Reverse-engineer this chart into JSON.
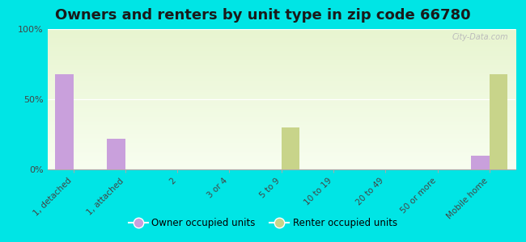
{
  "title": "Owners and renters by unit type in zip code 66780",
  "categories": [
    "1, detached",
    "1, attached",
    "2",
    "3 or 4",
    "5 to 9",
    "10 to 19",
    "20 to 49",
    "50 or more",
    "Mobile home"
  ],
  "owner_values": [
    68,
    22,
    0,
    0,
    0,
    0,
    0,
    0,
    10
  ],
  "renter_values": [
    0,
    0,
    0,
    0,
    30,
    0,
    0,
    0,
    68
  ],
  "owner_color": "#c9a0dc",
  "renter_color": "#c8d48a",
  "outer_background": "#00e5e5",
  "title_fontsize": 13,
  "ylabel_ticks": [
    "0%",
    "50%",
    "100%"
  ],
  "ylabel_vals": [
    0,
    50,
    100
  ],
  "ylim": [
    0,
    100
  ],
  "bar_width": 0.35,
  "legend_owner": "Owner occupied units",
  "legend_renter": "Renter occupied units",
  "watermark": "City-Data.com"
}
